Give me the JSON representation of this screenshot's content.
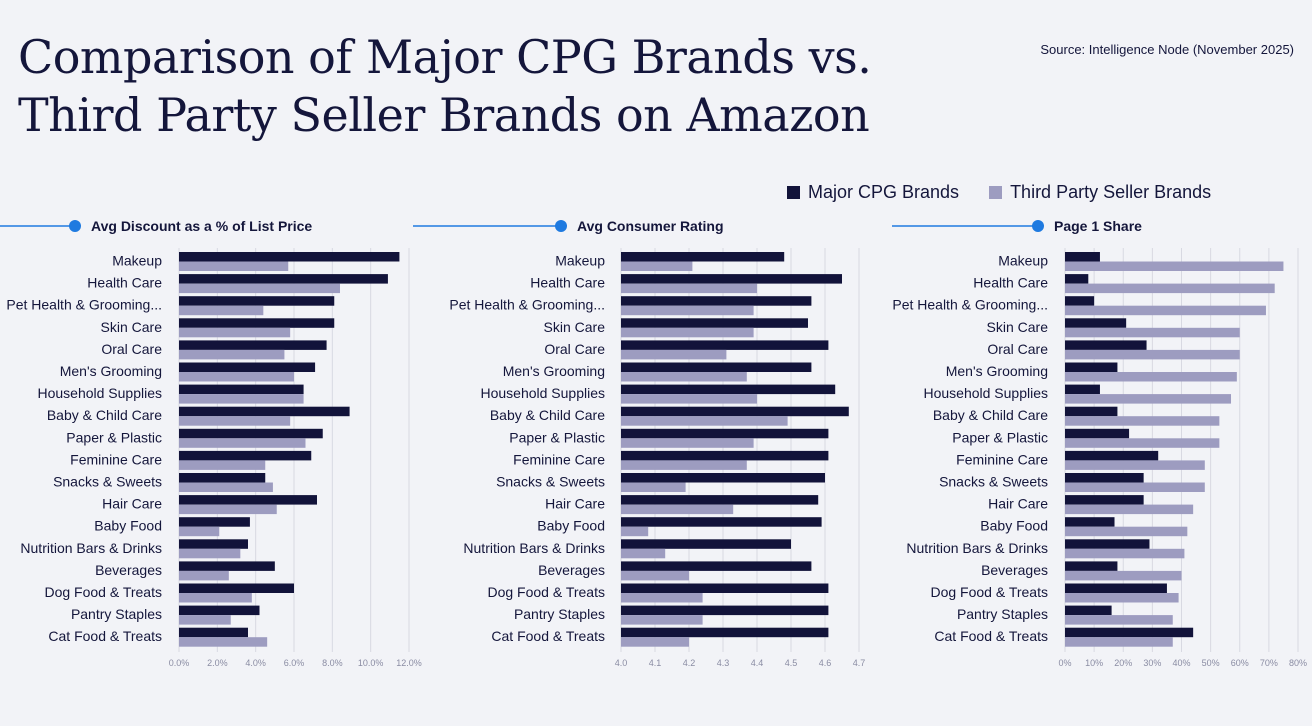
{
  "header": {
    "title_line1": "Comparison of Major CPG Brands vs.",
    "title_line2": "Third Party Seller Brands on Amazon",
    "source": "Source: Intelligence Node (November 2025)"
  },
  "legend": {
    "major": "Major CPG Brands",
    "third": "Third Party Seller Brands"
  },
  "colors": {
    "major": "#12133a",
    "third": "#9d9cc0",
    "accent": "#1f7ae0",
    "text": "#14163b",
    "grid": "#d8d9e2"
  },
  "chart_data": [
    {
      "type": "bar",
      "title": "Avg Discount as a % of List Price",
      "categories": [
        "Makeup",
        "Health Care",
        "Pet Health & Grooming...",
        "Skin Care",
        "Oral Care",
        "Men's Grooming",
        "Household Supplies",
        "Baby & Child Care",
        "Paper & Plastic",
        "Feminine Care",
        "Snacks & Sweets",
        "Hair Care",
        "Baby Food",
        "Nutrition Bars & Drinks",
        "Beverages",
        "Dog Food & Treats",
        "Pantry Staples",
        "Cat Food & Treats"
      ],
      "series": [
        {
          "name": "Major CPG Brands",
          "values": [
            11.5,
            10.9,
            8.1,
            8.1,
            7.7,
            7.1,
            6.5,
            8.9,
            7.5,
            6.9,
            4.5,
            7.2,
            3.7,
            3.6,
            5.0,
            6.0,
            4.2,
            3.6
          ]
        },
        {
          "name": "Third Party Seller Brands",
          "values": [
            5.7,
            8.4,
            4.4,
            5.8,
            5.5,
            6.0,
            6.5,
            5.8,
            6.6,
            4.5,
            4.9,
            5.1,
            2.1,
            3.2,
            2.6,
            3.8,
            2.7,
            4.6
          ]
        }
      ],
      "xlim": [
        0,
        12
      ],
      "ticks": [
        0,
        2,
        4,
        6,
        8,
        10,
        12
      ],
      "tick_labels": [
        "0.0%",
        "2.0%",
        "4.0%",
        "6.0%",
        "8.0%",
        "10.0%",
        "12.0%"
      ]
    },
    {
      "type": "bar",
      "title": "Avg Consumer Rating",
      "categories": [
        "Makeup",
        "Health Care",
        "Pet Health & Grooming...",
        "Skin Care",
        "Oral Care",
        "Men's Grooming",
        "Household Supplies",
        "Baby & Child Care",
        "Paper & Plastic",
        "Feminine Care",
        "Snacks & Sweets",
        "Hair Care",
        "Baby Food",
        "Nutrition Bars & Drinks",
        "Beverages",
        "Dog Food & Treats",
        "Pantry Staples",
        "Cat Food & Treats"
      ],
      "series": [
        {
          "name": "Major CPG Brands",
          "values": [
            4.48,
            4.65,
            4.56,
            4.55,
            4.61,
            4.56,
            4.63,
            4.67,
            4.61,
            4.61,
            4.6,
            4.58,
            4.59,
            4.5,
            4.56,
            4.61,
            4.61,
            4.61
          ]
        },
        {
          "name": "Third Party Seller Brands",
          "values": [
            4.21,
            4.4,
            4.39,
            4.39,
            4.31,
            4.37,
            4.4,
            4.49,
            4.39,
            4.37,
            4.19,
            4.33,
            4.08,
            4.13,
            4.2,
            4.24,
            4.24,
            4.2
          ]
        }
      ],
      "xlim": [
        4.0,
        4.7
      ],
      "ticks": [
        4.0,
        4.1,
        4.2,
        4.3,
        4.4,
        4.5,
        4.6,
        4.7
      ],
      "tick_labels": [
        "4.0",
        "4.1",
        "4.2",
        "4.3",
        "4.4",
        "4.5",
        "4.6",
        "4.7"
      ]
    },
    {
      "type": "bar",
      "title": "Page 1 Share",
      "categories": [
        "Makeup",
        "Health Care",
        "Pet Health & Grooming...",
        "Skin Care",
        "Oral Care",
        "Men's Grooming",
        "Household Supplies",
        "Baby & Child Care",
        "Paper & Plastic",
        "Feminine Care",
        "Snacks & Sweets",
        "Hair Care",
        "Baby Food",
        "Nutrition Bars & Drinks",
        "Beverages",
        "Dog Food & Treats",
        "Pantry Staples",
        "Cat Food & Treats"
      ],
      "series": [
        {
          "name": "Major CPG Brands",
          "values": [
            12,
            8,
            10,
            21,
            28,
            18,
            12,
            18,
            22,
            32,
            27,
            27,
            17,
            29,
            18,
            35,
            16,
            44
          ]
        },
        {
          "name": "Third Party Seller Brands",
          "values": [
            75,
            72,
            69,
            60,
            60,
            59,
            57,
            53,
            53,
            48,
            48,
            44,
            42,
            41,
            40,
            39,
            37,
            37
          ]
        }
      ],
      "xlim": [
        0,
        80
      ],
      "ticks": [
        0,
        10,
        20,
        30,
        40,
        50,
        60,
        70,
        80
      ],
      "tick_labels": [
        "0%",
        "10%",
        "20%",
        "30%",
        "40%",
        "50%",
        "60%",
        "70%",
        "80%"
      ]
    }
  ]
}
